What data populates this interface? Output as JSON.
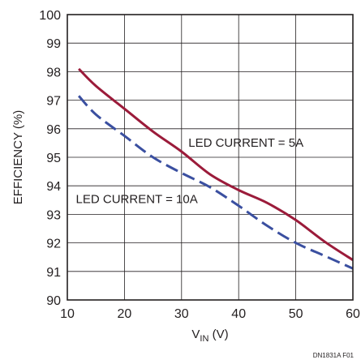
{
  "chart_data": {
    "type": "line",
    "xlabel": "V",
    "xlabel_sub": "IN",
    "xlabel_unit": " (V)",
    "ylabel": "EFFICIENCY (%)",
    "xlim": [
      10,
      60
    ],
    "ylim": [
      90,
      100
    ],
    "x_ticks": [
      "10",
      "20",
      "30",
      "40",
      "50",
      "60"
    ],
    "y_ticks": [
      "90",
      "91",
      "92",
      "93",
      "94",
      "95",
      "96",
      "97",
      "98",
      "99",
      "100"
    ],
    "grid": true,
    "series": [
      {
        "name": "LED CURRENT = 5A",
        "color": "#9b1b3a",
        "dash": "solid",
        "x": [
          12,
          15,
          20,
          25,
          30,
          35,
          40,
          45,
          50,
          55,
          60
        ],
        "y": [
          98.1,
          97.5,
          96.7,
          95.9,
          95.2,
          94.4,
          93.85,
          93.4,
          92.8,
          92.05,
          91.4
        ]
      },
      {
        "name": "LED CURRENT = 10A",
        "color": "#3a4fa0",
        "dash": "dashed",
        "x": [
          12,
          15,
          20,
          25,
          30,
          35,
          40,
          45,
          50,
          55,
          60
        ],
        "y": [
          97.15,
          96.5,
          95.75,
          95.0,
          94.45,
          93.95,
          93.3,
          92.6,
          92.0,
          91.55,
          91.1
        ]
      }
    ],
    "annotations": [
      {
        "text": "LED CURRENT = 5A",
        "x": 31.2,
        "y": 95.37
      },
      {
        "text": "LED CURRENT = 10A",
        "x": 11.5,
        "y": 93.4
      }
    ],
    "figure_id": "DN1831A F01"
  }
}
